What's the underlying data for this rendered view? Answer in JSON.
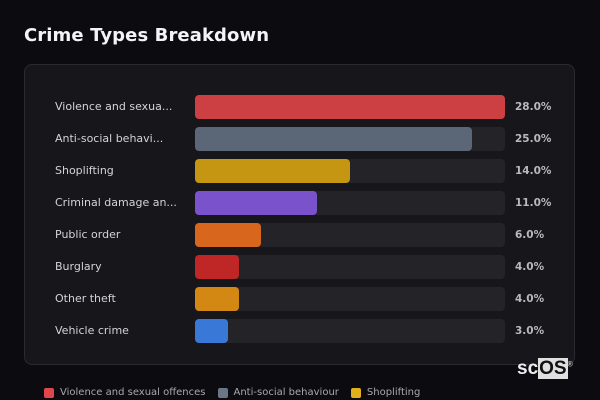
{
  "header": {
    "title": "Crime Types Breakdown"
  },
  "chart_data": {
    "type": "bar",
    "orientation": "horizontal",
    "title": "Crime Types Breakdown",
    "xlabel": "",
    "ylabel": "",
    "xlim": [
      0,
      28
    ],
    "grid": false,
    "legend_position": "bottom",
    "categories": [
      "Violence and sexual offences",
      "Anti-social behaviour",
      "Shoplifting",
      "Criminal damage and arson",
      "Public order",
      "Burglary",
      "Other theft",
      "Vehicle crime"
    ],
    "values": [
      28.0,
      25.0,
      14.0,
      11.0,
      6.0,
      4.0,
      4.0,
      3.0
    ]
  },
  "rows": [
    {
      "label": "Violence and sexua...",
      "value": 28.0,
      "pct": "28.0%",
      "color": "#cc4044"
    },
    {
      "label": "Anti-social behavi...",
      "value": 25.0,
      "pct": "25.0%",
      "color": "#5b6676"
    },
    {
      "label": "Shoplifting",
      "value": 14.0,
      "pct": "14.0%",
      "color": "#c59612"
    },
    {
      "label": "Criminal damage an...",
      "value": 11.0,
      "pct": "11.0%",
      "color": "#7a52cc"
    },
    {
      "label": "Public order",
      "value": 6.0,
      "pct": "6.0%",
      "color": "#d8661c"
    },
    {
      "label": "Burglary",
      "value": 4.0,
      "pct": "4.0%",
      "color": "#bf2626"
    },
    {
      "label": "Other theft",
      "value": 4.0,
      "pct": "4.0%",
      "color": "#d48814"
    },
    {
      "label": "Vehicle crime",
      "value": 3.0,
      "pct": "3.0%",
      "color": "#3a78d8"
    }
  ],
  "legend": [
    {
      "label": "Violence and sexual offences",
      "color": "#e0474c"
    },
    {
      "label": "Anti-social behaviour",
      "color": "#6a7688"
    },
    {
      "label": "Shoplifting",
      "color": "#e2b01a"
    }
  ],
  "brand": {
    "prefix": "sc",
    "highlight": "OS",
    "mark": "®"
  }
}
